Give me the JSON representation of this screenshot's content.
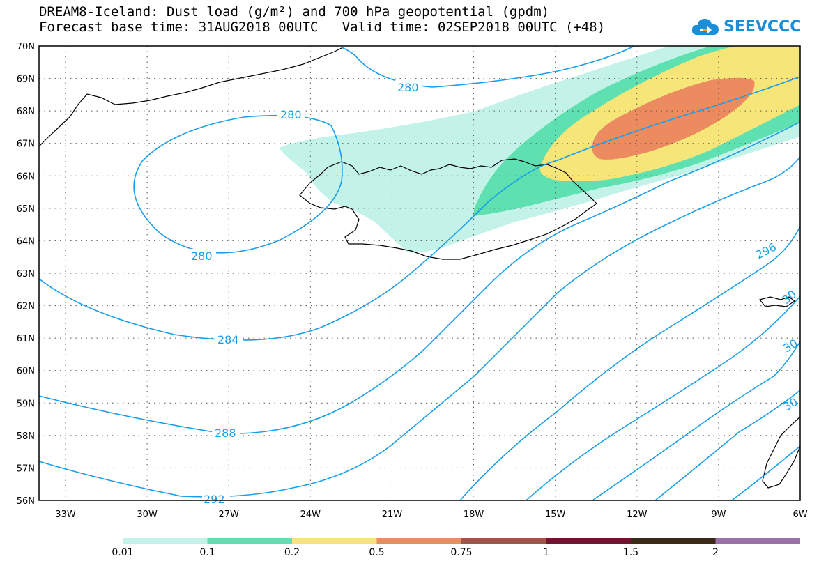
{
  "header": {
    "title_line1": "DREAM8-Iceland: Dust load (g/m²) and 700 hPa geopotential (gpdm)",
    "base_time": "Forecast base time: 31AUG2018 00UTC",
    "valid_time": "Valid time: 02SEP2018 00UTC (+48)"
  },
  "logo": {
    "text": "SEEVCCC",
    "icon": "cloud-arrow-icon",
    "color": "#1a8fd8"
  },
  "axes": {
    "lat_ticks": [
      "70N",
      "69N",
      "68N",
      "67N",
      "66N",
      "65N",
      "64N",
      "63N",
      "62N",
      "61N",
      "60N",
      "59N",
      "58N",
      "57N",
      "56N"
    ],
    "lon_ticks": [
      "33W",
      "30W",
      "27W",
      "24W",
      "21W",
      "18W",
      "15W",
      "12W",
      "9W",
      "6W"
    ]
  },
  "contours": {
    "color": "#1a9ee8",
    "labels": [
      "280",
      "280",
      "280",
      "284",
      "288",
      "292",
      "296",
      "30",
      "30",
      "30"
    ]
  },
  "colorbar": {
    "colors": [
      "#c2f2e8",
      "#5ee0b0",
      "#f6e67a",
      "#ec8a60",
      "#a8504a",
      "#7a1030",
      "#3b2a18",
      "#9a70a8"
    ],
    "labels": [
      "0.01",
      "0.1",
      "0.2",
      "0.5",
      "0.75",
      "1",
      "1.5",
      "2"
    ]
  },
  "colors": {
    "land_outline": "#000000",
    "grid": "#555555"
  }
}
